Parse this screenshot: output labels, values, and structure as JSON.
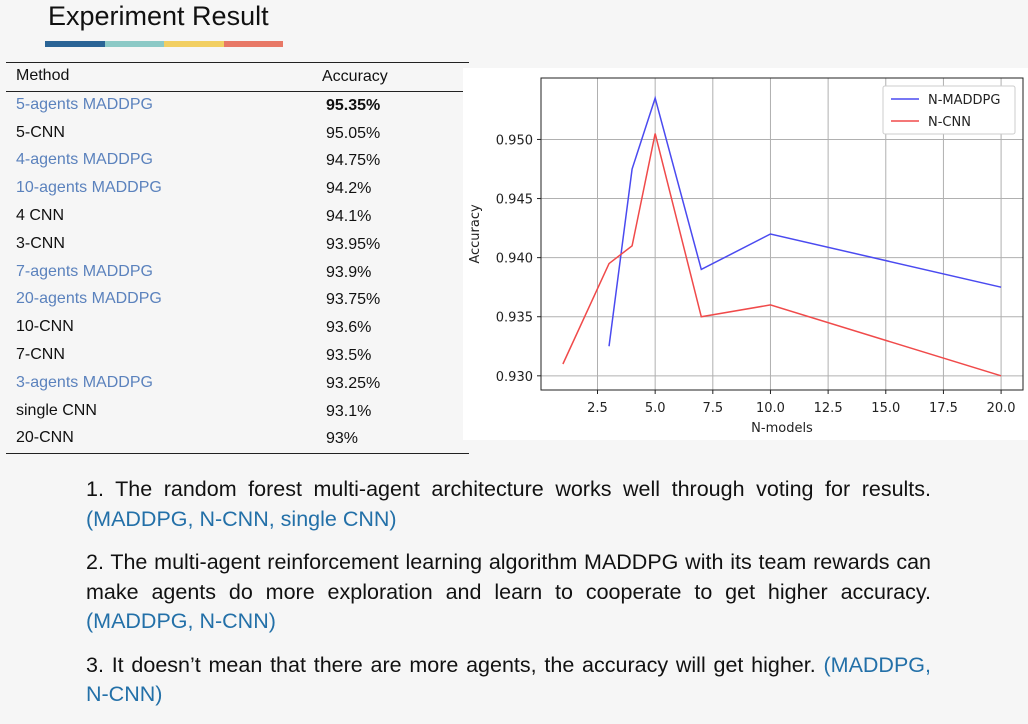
{
  "header": {
    "title": "Experiment Result",
    "accent_colors": [
      "#2a6496",
      "#8cc9c6",
      "#f2cf62",
      "#e87866"
    ]
  },
  "table": {
    "columns": [
      "Method",
      "Accuracy"
    ],
    "rows": [
      {
        "method": "5-agents MADDPG",
        "accuracy": "95.35%",
        "highlight": true,
        "bold": true
      },
      {
        "method": "5-CNN",
        "accuracy": "95.05%",
        "highlight": false
      },
      {
        "method": "4-agents MADDPG",
        "accuracy": "94.75%",
        "highlight": true
      },
      {
        "method": "10-agents MADDPG",
        "accuracy": "94.2%",
        "highlight": true
      },
      {
        "method": "4 CNN",
        "accuracy": "94.1%",
        "highlight": false
      },
      {
        "method": "3-CNN",
        "accuracy": "93.95%",
        "highlight": false
      },
      {
        "method": "7-agents MADDPG",
        "accuracy": "93.9%",
        "highlight": true
      },
      {
        "method": "20-agents MADDPG",
        "accuracy": "93.75%",
        "highlight": true
      },
      {
        "method": "10-CNN",
        "accuracy": "93.6%",
        "highlight": false
      },
      {
        "method": "7-CNN",
        "accuracy": "93.5%",
        "highlight": false
      },
      {
        "method": "3-agents MADDPG",
        "accuracy": "93.25%",
        "highlight": true
      },
      {
        "method": "single CNN",
        "accuracy": "93.1%",
        "highlight": false
      },
      {
        "method": "20-CNN",
        "accuracy": "93%",
        "highlight": false
      }
    ],
    "highlight_color": "#5b82bd"
  },
  "chart_data": {
    "type": "line",
    "xlabel": "N-models",
    "ylabel": "Accuracy",
    "xlim": [
      0.05,
      20.95
    ],
    "ylim": [
      0.9288,
      0.9552
    ],
    "xticks": [
      "2.5",
      "5.0",
      "7.5",
      "10.0",
      "12.5",
      "15.0",
      "17.5",
      "20.0"
    ],
    "yticks": [
      "0.930",
      "0.935",
      "0.940",
      "0.945",
      "0.950"
    ],
    "grid": true,
    "legend_position": "top-right",
    "series": [
      {
        "name": "N-MADDPG",
        "color": "#4a4af0",
        "x": [
          3,
          4,
          5,
          7,
          10,
          20
        ],
        "y": [
          0.9325,
          0.9475,
          0.9535,
          0.939,
          0.942,
          0.9375
        ]
      },
      {
        "name": "N-CNN",
        "color": "#f04a4a",
        "x": [
          1,
          3,
          4,
          5,
          7,
          10,
          20
        ],
        "y": [
          0.931,
          0.9395,
          0.941,
          0.9505,
          0.935,
          0.936,
          0.93
        ]
      }
    ]
  },
  "notes": [
    {
      "text": "1. The random forest multi-agent architecture works well through voting for results. ",
      "ref": "(MADDPG, N-CNN, single CNN)"
    },
    {
      "text": "2. The multi-agent reinforcement learning algorithm MADDPG with its team rewards can make agents do more exploration and learn to cooperate to get higher accuracy. ",
      "ref": "(MADDPG, N-CNN)"
    },
    {
      "text": "3. It doesn’t mean that there are more agents, the accuracy will get higher. ",
      "ref": "(MADDPG, N-CNN)"
    }
  ]
}
